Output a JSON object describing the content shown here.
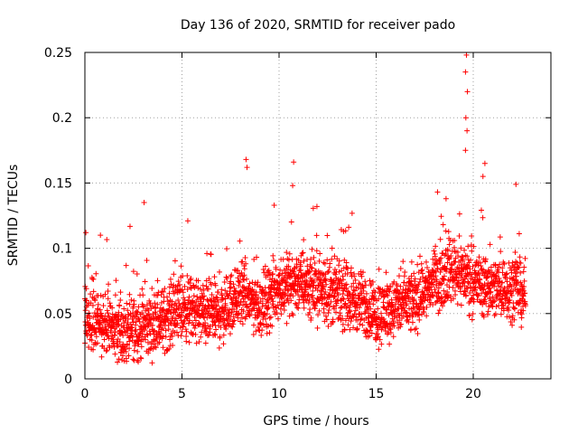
{
  "chart_data": {
    "type": "scatter",
    "title": "Day 136 of 2020, SRMTID for receiver pado",
    "xlabel": "GPS time / hours",
    "ylabel": "SRMTID / TECUs",
    "xlim": [
      0,
      24
    ],
    "ylim": [
      0,
      0.25
    ],
    "xticks": [
      0,
      5,
      10,
      15,
      20
    ],
    "yticks": [
      0,
      0.05,
      0.1,
      0.15,
      0.2,
      0.25
    ],
    "xtick_labels": [
      "0",
      "5",
      "10",
      "15",
      "20"
    ],
    "ytick_labels": [
      "0",
      "0.05",
      "0.1",
      "0.15",
      "0.2",
      "0.25"
    ],
    "grid": true,
    "marker": "+",
    "color": "#ff0000",
    "series": [
      {
        "name": "SRMTID",
        "x_start": 0.0,
        "x_end": 22.7,
        "x_step": 0.0083,
        "baseline_profile": [
          [
            0.0,
            0.045
          ],
          [
            1.0,
            0.04
          ],
          [
            2.0,
            0.035
          ],
          [
            3.0,
            0.04
          ],
          [
            4.0,
            0.045
          ],
          [
            5.0,
            0.055
          ],
          [
            6.0,
            0.05
          ],
          [
            7.0,
            0.05
          ],
          [
            8.0,
            0.065
          ],
          [
            9.0,
            0.055
          ],
          [
            10.0,
            0.07
          ],
          [
            11.0,
            0.075
          ],
          [
            12.0,
            0.07
          ],
          [
            13.0,
            0.065
          ],
          [
            14.0,
            0.06
          ],
          [
            15.0,
            0.05
          ],
          [
            16.0,
            0.055
          ],
          [
            17.0,
            0.06
          ],
          [
            18.0,
            0.075
          ],
          [
            19.0,
            0.085
          ],
          [
            20.0,
            0.075
          ],
          [
            21.0,
            0.07
          ],
          [
            22.0,
            0.07
          ],
          [
            22.7,
            0.065
          ]
        ],
        "peaks": [
          {
            "x": 19.65,
            "y": 0.248
          },
          {
            "x": 19.6,
            "y": 0.235
          },
          {
            "x": 19.7,
            "y": 0.22
          },
          {
            "x": 19.62,
            "y": 0.2
          },
          {
            "x": 19.68,
            "y": 0.19
          },
          {
            "x": 19.6,
            "y": 0.175
          },
          {
            "x": 8.3,
            "y": 0.168
          },
          {
            "x": 8.35,
            "y": 0.162
          },
          {
            "x": 10.75,
            "y": 0.166
          },
          {
            "x": 20.6,
            "y": 0.165
          },
          {
            "x": 20.5,
            "y": 0.155
          },
          {
            "x": 22.2,
            "y": 0.149
          },
          {
            "x": 10.7,
            "y": 0.148
          },
          {
            "x": 3.05,
            "y": 0.135
          },
          {
            "x": 9.75,
            "y": 0.133
          },
          {
            "x": 11.95,
            "y": 0.132
          },
          {
            "x": 0.05,
            "y": 0.112
          },
          {
            "x": 0.8,
            "y": 0.11
          },
          {
            "x": 5.3,
            "y": 0.121
          },
          {
            "x": 18.6,
            "y": 0.138
          }
        ]
      }
    ]
  }
}
